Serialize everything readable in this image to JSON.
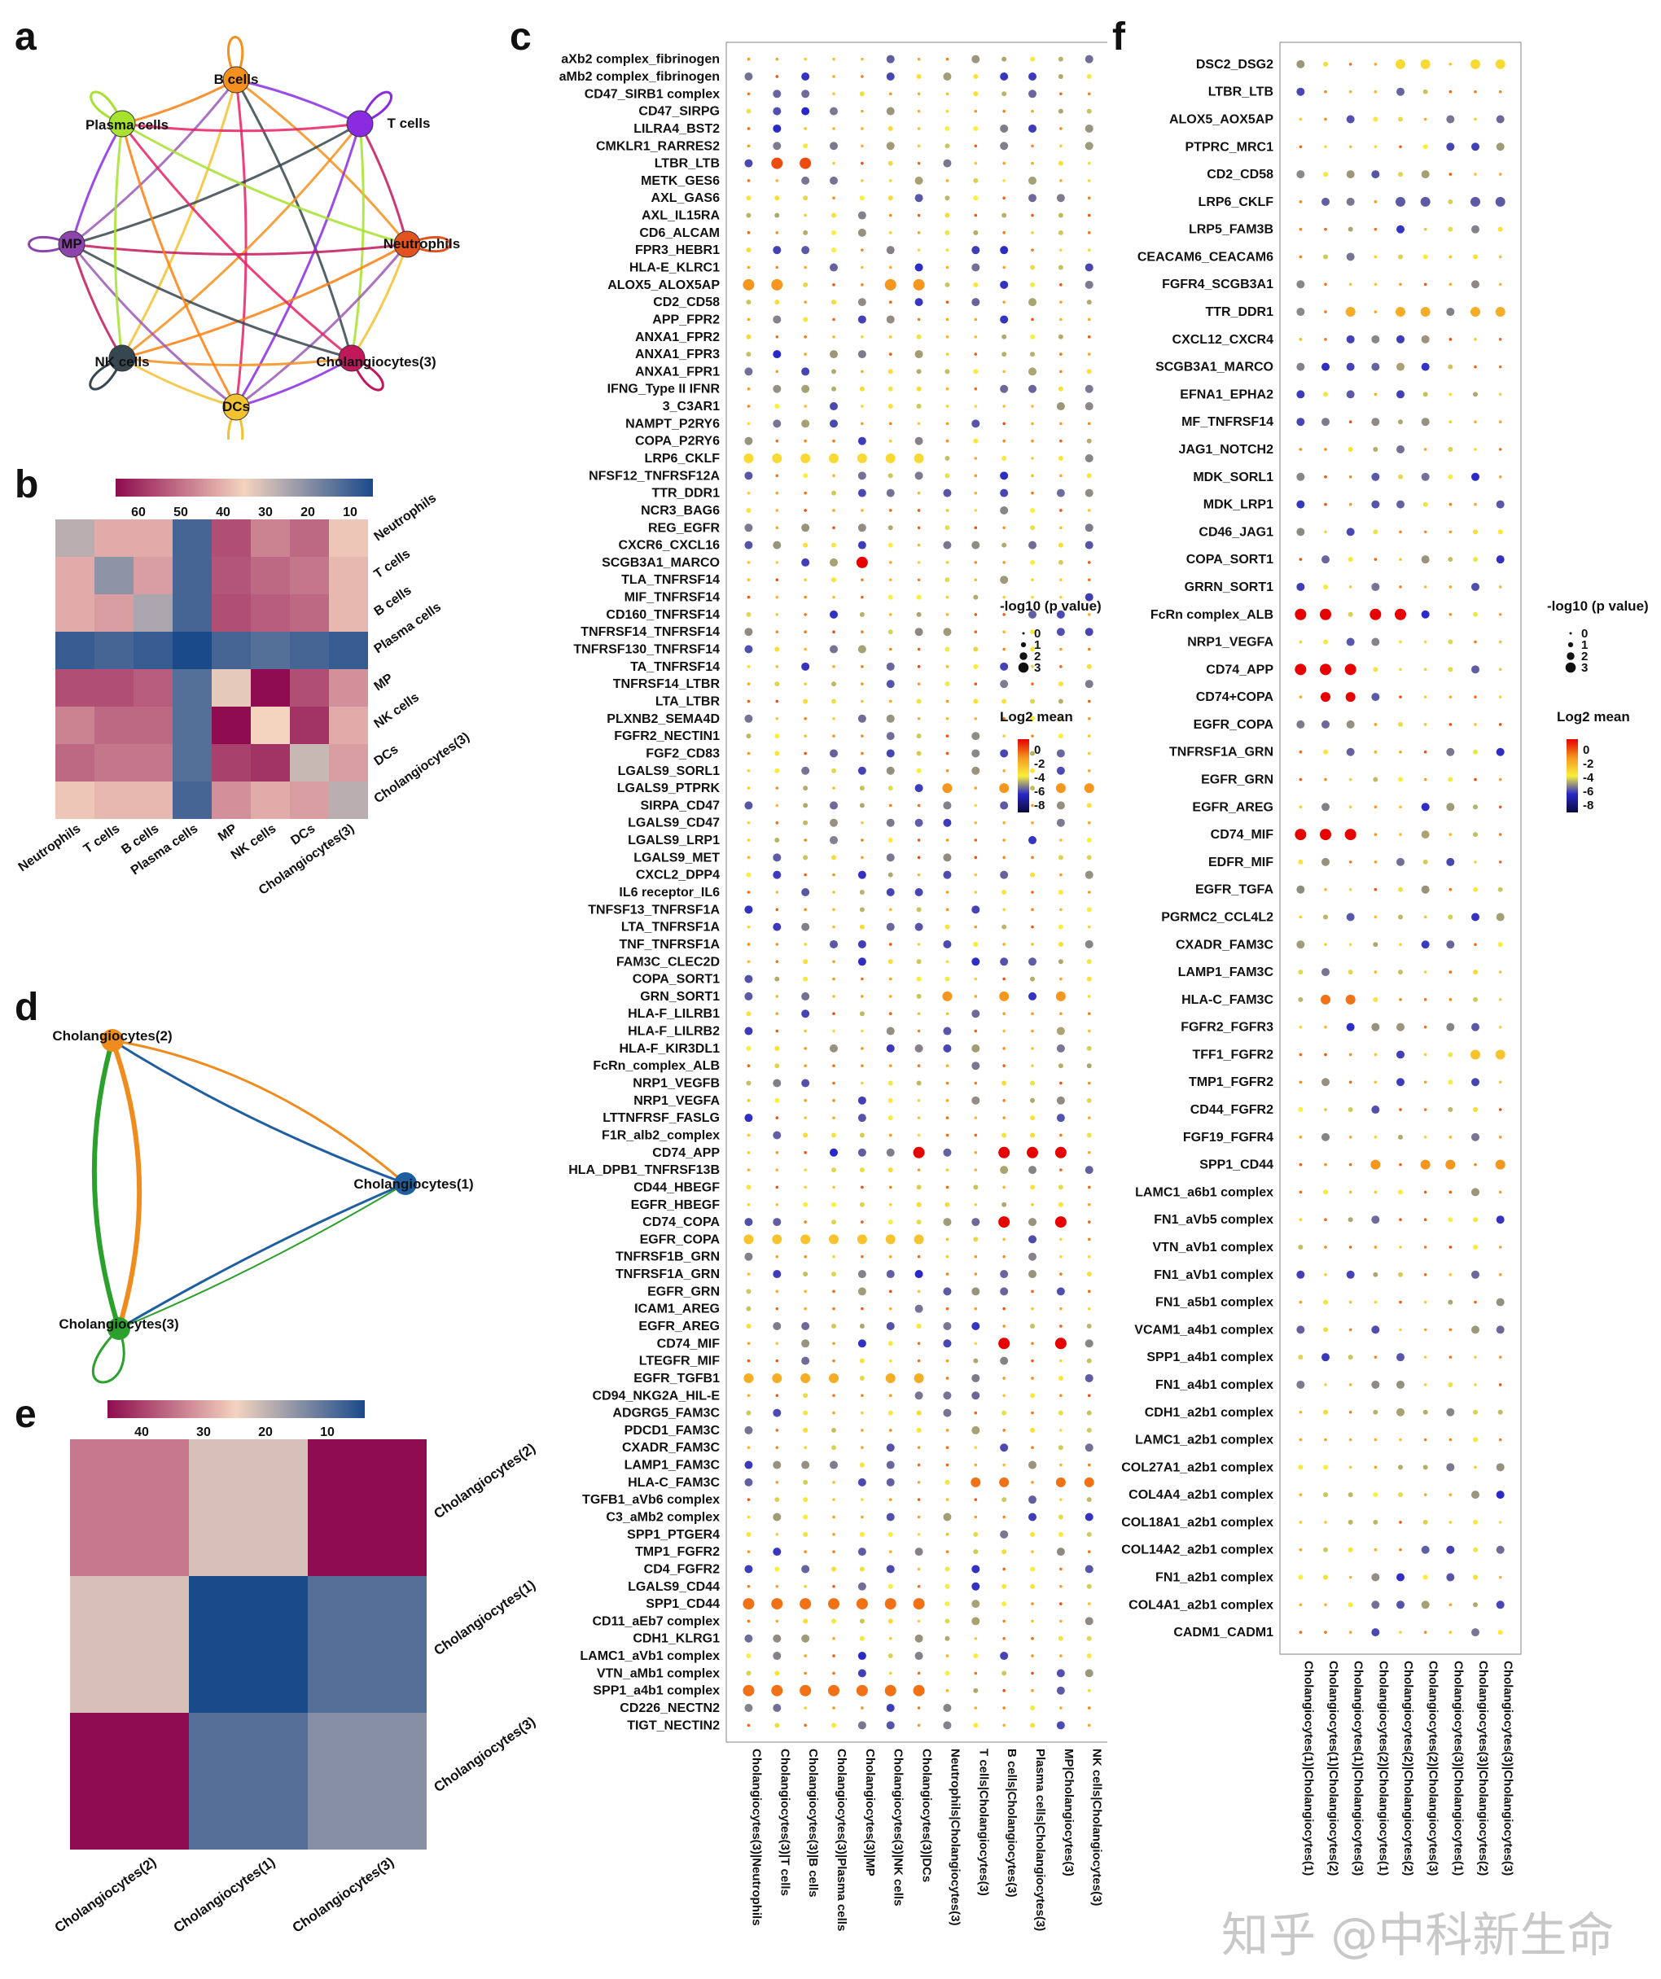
{
  "panels": {
    "a": "a",
    "b": "b",
    "c": "c",
    "d": "d",
    "e": "e",
    "f": "f"
  },
  "panel_a": {
    "nodes": [
      {
        "name": "B cells",
        "color": "#f5901e"
      },
      {
        "name": "T cells",
        "color": "#8a2be2"
      },
      {
        "name": "Neutrophils",
        "color": "#e2531f"
      },
      {
        "name": "Cholangiocytes(3)",
        "color": "#c2185b"
      },
      {
        "name": "DCs",
        "color": "#f2c230"
      },
      {
        "name": "NK cells",
        "color": "#37474f"
      },
      {
        "name": "MP",
        "color": "#8e44ad"
      },
      {
        "name": "Plasma cells",
        "color": "#a6e22e"
      }
    ]
  },
  "panel_b": {
    "legend_ticks": [
      "60",
      "50",
      "40",
      "30",
      "20",
      "10"
    ],
    "rows": [
      "Neutrophils",
      "T cells",
      "B cells",
      "Plasma cells",
      "MP",
      "NK cells",
      "DCs",
      "Cholangiocytes(3)"
    ],
    "cols": [
      "Neutrophils",
      "T cells",
      "B cells",
      "Plasma cells",
      "MP",
      "NK cells",
      "DCs",
      "Cholangiocytes(3)"
    ],
    "values": [
      [
        28,
        42,
        42,
        12,
        56,
        48,
        52,
        38
      ],
      [
        42,
        22,
        44,
        12,
        55,
        52,
        50,
        40
      ],
      [
        42,
        44,
        26,
        12,
        56,
        54,
        52,
        40
      ],
      [
        10,
        12,
        10,
        6,
        12,
        14,
        12,
        10
      ],
      [
        56,
        56,
        54,
        14,
        34,
        66,
        56,
        46
      ],
      [
        48,
        52,
        52,
        14,
        66,
        36,
        60,
        42
      ],
      [
        52,
        50,
        50,
        14,
        58,
        60,
        30,
        44
      ],
      [
        38,
        40,
        40,
        12,
        46,
        42,
        44,
        28
      ]
    ]
  },
  "panel_c": {
    "rows": [
      "aXb2 complex_fibrinogen",
      "aMb2 complex_fibrinogen",
      "CD47_SIRB1 complex",
      "CD47_SIRPG",
      "LILRA4_BST2",
      "CMKLR1_RARRES2",
      "LTBR_LTB",
      "METK_GES6",
      "AXL_GAS6",
      "AXL_IL15RA",
      "CD6_ALCAM",
      "FPR3_HEBR1",
      "HLA-E_KLRC1",
      "ALOX5_ALOX5AP",
      "CD2_CD58",
      "APP_FPR2",
      "ANXA1_FPR2",
      "ANXA1_FPR3",
      "ANXA1_FPR1",
      "IFNG_Type II IFNR",
      "3_C3AR1",
      "NAMPT_P2RY6",
      "COPA_P2RY6",
      "LRP6_CKLF",
      "NFSF12_TNFRSF12A",
      "TTR_DDR1",
      "NCR3_BAG6",
      "REG_EGFR",
      "CXCR6_CXCL16",
      "SCGB3A1_MARCO",
      "TLA_TNFRSF14",
      "MIF_TNFRSF14",
      "CD160_TNFRSF14",
      "TNFRSF14_TNFRSF14",
      "TNFRSF130_TNFRSF14",
      "TA_TNFRSF14",
      "TNFRSF14_LTBR",
      "LTA_LTBR",
      "PLXNB2_SEMA4D",
      "FGFR2_NECTIN1",
      "FGF2_CD83",
      "LGALS9_SORL1",
      "LGALS9_PTPRK",
      "SIRPA_CD47",
      "LGALS9_CD47",
      "LGALS9_LRP1",
      "LGALS9_MET",
      "CXCL2_DPP4",
      "IL6 receptor_IL6",
      "TNFSF13_TNFRSF1A",
      "LTA_TNFRSF1A",
      "TNF_TNFRSF1A",
      "FAM3C_CLEC2D",
      "COPA_SORT1",
      "GRN_SORT1",
      "HLA-F_LILRB1",
      "HLA-F_LILRB2",
      "HLA-F_KIR3DL1",
      "FcRn_complex_ALB",
      "NRP1_VEGFB",
      "NRP1_VEGFA",
      "LTTNFRSF_FASLG",
      "F1R_alb2_complex",
      "CD74_APP",
      "HLA_DPB1_TNFRSF13B",
      "CD44_HBEGF",
      "EGFR_HBEGF",
      "CD74_COPA",
      "EGFR_COPA",
      "TNFRSF1B_GRN",
      "TNFRSF1A_GRN",
      "EGFR_GRN",
      "ICAM1_AREG",
      "EGFR_AREG",
      "CD74_MIF",
      "LTEGFR_MIF",
      "EGFR_TGFB1",
      "CD94_NKG2A_HIL-E",
      "ADGRG5_FAM3C",
      "PDCD1_FAM3C",
      "CXADR_FAM3C",
      "LAMP1_FAM3C",
      "HLA-C_FAM3C",
      "TGFB1_aVb6 complex",
      "C3_aMb2 complex",
      "SPP1_PTGER4",
      "TMP1_FGFR2",
      "CD4_FGFR2",
      "LGALS9_CD44",
      "SPP1_CD44",
      "CD11_aEb7 complex",
      "CDH1_KLRG1",
      "LAMC1_aVb1 complex",
      "VTN_aMb1 complex",
      "SPP1_a4b1 complex",
      "CD226_NECTN2",
      "TIGT_NECTIN2"
    ],
    "cols": [
      "Cholangiocytes(3)|Neutrophils",
      "Cholangiocytes(3)|T cells",
      "Cholangiocytes(3)|B cells",
      "Cholangiocytes(3)|Plasma cells",
      "Cholangiocytes(3)|MP",
      "Cholangiocytes(3)|NK cells",
      "Cholangiocytes(3)|DCs",
      "Neutrophils|Cholangiocytes(3)",
      "T cells|Cholangiocytes(3)",
      "B cells|Cholangiocytes(3)",
      "Plasma cells|Cholangiocytes(3)",
      "MP|Cholangiocytes(3)",
      "NK cells|Cholangiocytes(3)",
      "DCs|Cholangiocytes(3)"
    ]
  },
  "panel_d": {
    "nodes": [
      {
        "name": "Cholangiocytes(2)",
        "color": "#f08c1e"
      },
      {
        "name": "Cholangiocytes(1)",
        "color": "#1f5fa0"
      },
      {
        "name": "Cholangiocytes(3)",
        "color": "#2ca02c"
      }
    ]
  },
  "panel_e": {
    "legend_ticks": [
      "40",
      "30",
      "20",
      "10"
    ],
    "rows": [
      "Cholangiocytes(2)",
      "Cholangiocytes(1)",
      "Cholangiocytes(3)"
    ],
    "cols": [
      "Cholangiocytes(2)",
      "Cholangiocytes(1)",
      "Cholangiocytes(3)"
    ],
    "values": [
      [
        38,
        25,
        50
      ],
      [
        25,
        6,
        12
      ],
      [
        50,
        12,
        17
      ]
    ]
  },
  "panel_f": {
    "rows": [
      "DSC2_DSG2",
      "LTBR_LTB",
      "ALOX5_AOX5AP",
      "PTPRC_MRC1",
      "CD2_CD58",
      "LRP6_CKLF",
      "LRP5_FAM3B",
      "CEACAM6_CEACAM6",
      "FGFR4_SCGB3A1",
      "TTR_DDR1",
      "CXCL12_CXCR4",
      "SCGB3A1_MARCO",
      "EFNA1_EPHA2",
      "MF_TNFRSF14",
      "JAG1_NOTCH2",
      "MDK_SORL1",
      "MDK_LRP1",
      "CD46_JAG1",
      "COPA_SORT1",
      "GRRN_SORT1",
      "FcRn complex_ALB",
      "NRP1_VEGFA",
      "CD74_APP",
      "CD74+COPA",
      "EGFR_COPA",
      "TNFRSF1A_GRN",
      "EGFR_GRN",
      "EGFR_AREG",
      "CD74_MIF",
      "EDFR_MIF",
      "EGFR_TGFA",
      "PGRMC2_CCL4L2",
      "CXADR_FAM3C",
      "LAMP1_FAM3C",
      "HLA-C_FAM3C",
      "FGFR2_FGFR3",
      "TFF1_FGFR2",
      "TMP1_FGFR2",
      "CD44_FGFR2",
      "FGF19_FGFR4",
      "SPP1_CD44",
      "LAMC1_a6b1 complex",
      "FN1_aVb5 complex",
      "VTN_aVb1 complex",
      "FN1_aVb1 complex",
      "FN1_a5b1 complex",
      "VCAM1_a4b1 complex",
      "SPP1_a4b1 complex",
      "FN1_a4b1 complex",
      "CDH1_a2b1 complex",
      "LAMC1_a2b1 complex",
      "COL27A1_a2b1 complex",
      "COL4A4_a2b1 complex",
      "COL18A1_a2b1 complex",
      "COL14A2_a2b1 complex",
      "FN1_a2b1 complex",
      "COL4A1_a2b1 complex",
      "CADM1_CADM1"
    ],
    "cols": [
      "Cholangiocytes(1)|Cholangiocytes(1)",
      "Cholangiocytes(1)|Cholangiocytes(2)",
      "Cholangiocytes(1)|Cholangiocytes(3)",
      "Cholangiocytes(2)|Cholangiocytes(1)",
      "Cholangiocytes(2)|Cholangiocytes(2)",
      "Cholangiocytes(2)|Cholangiocytes(3)",
      "Cholangiocytes(3)|Cholangiocytes(1)",
      "Cholangiocytes(3)|Cholangiocytes(2)",
      "Cholangiocytes(3)|Cholangiocytes(3)"
    ]
  },
  "legend_dot": {
    "pvalue_title": "-log10 (p value)",
    "pvalue_ticks": [
      "0",
      "1",
      "2",
      "3"
    ],
    "mean_title": "Log2 mean",
    "mean_ticks": [
      "0",
      "-2",
      "-4",
      "-6",
      "-8"
    ]
  },
  "watermark": "知乎 @中科新生命",
  "colors": {
    "heat_high": "#8e0c4f",
    "heat_mid": "#f4d3bf",
    "heat_low": "#1a4a8a"
  }
}
